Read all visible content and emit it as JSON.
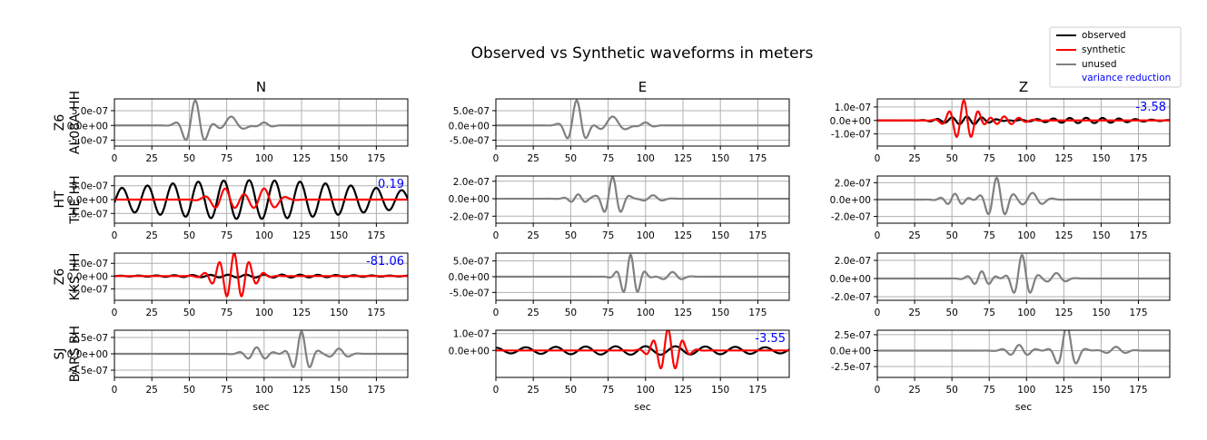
{
  "title": "Observed vs Synthetic waveforms in meters",
  "colors": {
    "observed": "#000000",
    "synthetic": "#ff0000",
    "unused": "#808080",
    "variance_reduction": "#0000ff",
    "grid": "#b0b0b0"
  },
  "legend": {
    "placement": "top-right",
    "entries": [
      {
        "label": "observed",
        "color": "#000000",
        "kind": "line"
      },
      {
        "label": "synthetic",
        "color": "#ff0000",
        "kind": "line"
      },
      {
        "label": "unused",
        "color": "#808080",
        "kind": "line"
      },
      {
        "label": "variance reduction",
        "color": "#0000ff",
        "kind": "text"
      }
    ]
  },
  "columns": [
    "N",
    "E",
    "Z"
  ],
  "rows": [
    {
      "network": "Z6",
      "station": "AL08A HH"
    },
    {
      "network": "HT",
      "station": "THE HH"
    },
    {
      "network": "Z6",
      "station": "KKS HH"
    },
    {
      "network": "SJ",
      "station": "BARS BH"
    }
  ],
  "xlabel": "sec",
  "chart_data": {
    "type": "line",
    "grid": true,
    "xlim": [
      0,
      196
    ],
    "xticks": [
      0,
      25,
      50,
      75,
      100,
      125,
      150,
      175
    ],
    "panels": [
      {
        "row": 0,
        "col": 0,
        "ylim": [
          -7e-07,
          9e-07
        ],
        "yticks": [
          5e-07,
          0,
          -5e-07
        ],
        "yticklabels": [
          "5.0e-07",
          "0.0e+00",
          "-5.0e-07"
        ],
        "used": false,
        "variance_reduction": "",
        "packets": [
          {
            "t": 54,
            "w": 9,
            "amp": 8.5e-07,
            "period": 14
          },
          {
            "t": 78,
            "w": 9,
            "amp": 3e-07,
            "period": 20
          },
          {
            "t": 100,
            "w": 6,
            "amp": 1e-07,
            "period": 14
          }
        ]
      },
      {
        "row": 0,
        "col": 1,
        "ylim": [
          -7e-07,
          9e-07
        ],
        "yticks": [
          5e-07,
          0,
          -5e-07
        ],
        "yticklabels": [
          "5.0e-07",
          "0.0e+00",
          "-5.0e-07"
        ],
        "used": false,
        "variance_reduction": "",
        "packets": [
          {
            "t": 54,
            "w": 8,
            "amp": 8.5e-07,
            "period": 14
          },
          {
            "t": 78,
            "w": 10,
            "amp": 3e-07,
            "period": 20
          },
          {
            "t": 100,
            "w": 6,
            "amp": 1e-07,
            "period": 14
          }
        ]
      },
      {
        "row": 0,
        "col": 2,
        "ylim": [
          -1.9e-07,
          1.6e-07
        ],
        "yticks": [
          1e-07,
          0,
          -1e-07
        ],
        "yticklabels": [
          "1.0e-07",
          "0.0e+00",
          "-1.0e-07"
        ],
        "used": true,
        "variance_reduction": "-3.58",
        "obs_packets": [
          {
            "t": 60,
            "w": 20,
            "amp": 3e-08,
            "period": 10
          },
          {
            "t": 140,
            "w": 40,
            "amp": 2e-08,
            "period": 11
          }
        ],
        "syn_packets": [
          {
            "t": 58,
            "w": 11,
            "amp": 1.5e-07,
            "period": 10
          },
          {
            "t": 85,
            "w": 15,
            "amp": 3e-08,
            "period": 10
          }
        ]
      },
      {
        "row": 1,
        "col": 0,
        "ylim": [
          -8.5e-07,
          8.5e-07
        ],
        "yticks": [
          5e-07,
          0,
          -5e-07
        ],
        "yticklabels": [
          "5.0e-07",
          "0.0e+00",
          "-5.0e-07"
        ],
        "used": true,
        "variance_reduction": "0.19",
        "obs_packets": [
          {
            "t": 90,
            "w": 120,
            "amp": 7e-07,
            "period": 17
          }
        ],
        "syn_packets": [
          {
            "t": 74,
            "w": 12,
            "amp": 4e-07,
            "period": 14
          },
          {
            "t": 100,
            "w": 12,
            "amp": 4e-07,
            "period": 15
          }
        ]
      },
      {
        "row": 1,
        "col": 1,
        "ylim": [
          -2.8e-07,
          2.6e-07
        ],
        "yticks": [
          2e-07,
          0,
          -2e-07
        ],
        "yticklabels": [
          "2.0e-07",
          "0.0e+00",
          "-2.0e-07"
        ],
        "used": false,
        "variance_reduction": "",
        "packets": [
          {
            "t": 78,
            "w": 8,
            "amp": 2.5e-07,
            "period": 12
          },
          {
            "t": 55,
            "w": 8,
            "amp": 5e-08,
            "period": 10
          },
          {
            "t": 105,
            "w": 8,
            "amp": 4e-08,
            "period": 14
          }
        ]
      },
      {
        "row": 1,
        "col": 2,
        "ylim": [
          -2.8e-07,
          2.8e-07
        ],
        "yticks": [
          2e-07,
          0,
          -2e-07
        ],
        "yticklabels": [
          "2.0e-07",
          "0.0e+00",
          "-2.0e-07"
        ],
        "used": false,
        "variance_reduction": "",
        "packets": [
          {
            "t": 80,
            "w": 9,
            "amp": 2.6e-07,
            "period": 12
          },
          {
            "t": 52,
            "w": 9,
            "amp": 7e-08,
            "period": 10
          },
          {
            "t": 104,
            "w": 10,
            "amp": 8e-08,
            "period": 14
          }
        ]
      },
      {
        "row": 2,
        "col": 0,
        "ylim": [
          -1.9e-07,
          1.8e-07
        ],
        "yticks": [
          1e-07,
          0,
          -1e-07
        ],
        "yticklabels": [
          "1.0e-07",
          "0.0e+00",
          "-1.0e-07"
        ],
        "used": true,
        "variance_reduction": "-81.06",
        "obs_packets": [
          {
            "t": 100,
            "w": 80,
            "amp": 1.2e-08,
            "period": 12
          }
        ],
        "syn_packets": [
          {
            "t": 80,
            "w": 14,
            "amp": 1.8e-07,
            "period": 10
          }
        ]
      },
      {
        "row": 2,
        "col": 1,
        "ylim": [
          -7.5e-07,
          7.5e-07
        ],
        "yticks": [
          5e-07,
          0,
          -5e-07
        ],
        "yticklabels": [
          "5.0e-07",
          "0.0e+00",
          "-5.0e-07"
        ],
        "used": false,
        "variance_reduction": "",
        "packets": [
          {
            "t": 90,
            "w": 8,
            "amp": 7e-07,
            "period": 10
          },
          {
            "t": 118,
            "w": 8,
            "amp": 1.5e-07,
            "period": 14
          }
        ]
      },
      {
        "row": 2,
        "col": 2,
        "ylim": [
          -2.4e-07,
          2.8e-07
        ],
        "yticks": [
          2e-07,
          0,
          -2e-07
        ],
        "yticklabels": [
          "2.0e-07",
          "0.0e+00",
          "-2.0e-07"
        ],
        "used": false,
        "variance_reduction": "",
        "packets": [
          {
            "t": 97,
            "w": 8,
            "amp": 2.6e-07,
            "period": 12
          },
          {
            "t": 70,
            "w": 9,
            "amp": 8e-08,
            "period": 10
          },
          {
            "t": 120,
            "w": 8,
            "amp": 6e-08,
            "period": 14
          }
        ]
      },
      {
        "row": 3,
        "col": 0,
        "ylim": [
          -3.6e-07,
          3.6e-07
        ],
        "yticks": [
          2.5e-07,
          0,
          -2.5e-07
        ],
        "yticklabels": [
          "2.5e-07",
          "0.0e+00",
          "-2.5e-07"
        ],
        "used": false,
        "variance_reduction": "",
        "packets": [
          {
            "t": 125,
            "w": 8,
            "amp": 3.4e-07,
            "period": 12
          },
          {
            "t": 95,
            "w": 10,
            "amp": 1e-07,
            "period": 12
          },
          {
            "t": 150,
            "w": 8,
            "amp": 8e-08,
            "period": 14
          }
        ]
      },
      {
        "row": 3,
        "col": 1,
        "ylim": [
          -1.6e-07,
          1.2e-07
        ],
        "yticks": [
          1e-07,
          0
        ],
        "yticklabels": [
          "1.0e-07",
          "0.0e+00"
        ],
        "used": true,
        "variance_reduction": "-3.55",
        "obs_packets": [
          {
            "t": 100,
            "w": 150,
            "amp": 2.5e-08,
            "period": 20
          }
        ],
        "syn_packets": [
          {
            "t": 115,
            "w": 11,
            "amp": 1.3e-07,
            "period": 10
          }
        ]
      },
      {
        "row": 3,
        "col": 2,
        "ylim": [
          -4.2e-07,
          3.2e-07
        ],
        "yticks": [
          2.5e-07,
          0,
          -2.5e-07
        ],
        "yticklabels": [
          "2.5e-07",
          "0.0e+00",
          "-2.5e-07"
        ],
        "used": false,
        "variance_reduction": "",
        "packets": [
          {
            "t": 127,
            "w": 8,
            "amp": 3.9e-07,
            "period": 14
          },
          {
            "t": 95,
            "w": 10,
            "amp": 9e-08,
            "period": 12
          },
          {
            "t": 160,
            "w": 9,
            "amp": 6e-08,
            "period": 14
          }
        ]
      }
    ]
  }
}
